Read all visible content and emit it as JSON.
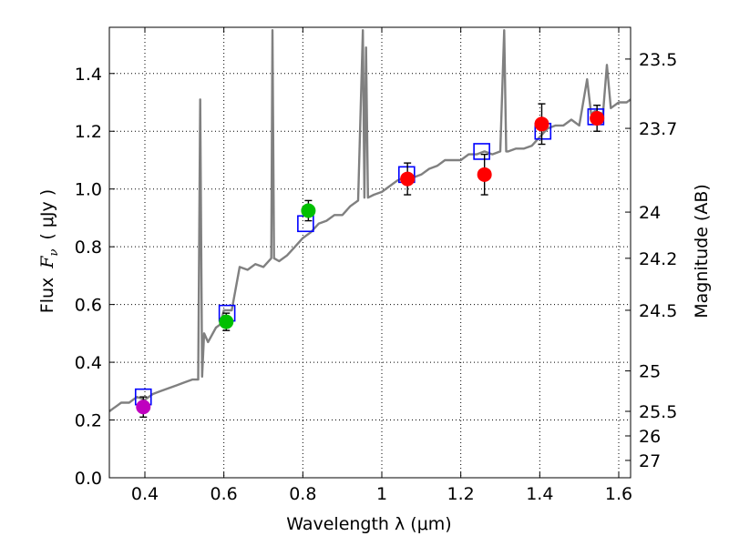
{
  "chart_data": {
    "type": "scatter",
    "xlabel": "Wavelength  λ (μm)",
    "ylabel_prefix": "Flux",
    "ylabel_symbol": "F",
    "ylabel_subscript": "ν",
    "ylabel_units": "( μJy )",
    "ylabel_right": "Magnitude (AB)",
    "xlim": [
      0.31,
      1.63
    ],
    "ylim": [
      0.0,
      1.56
    ],
    "x_ticks": [
      0.4,
      0.6,
      0.8,
      1.0,
      1.2,
      1.4,
      1.6
    ],
    "x_tick_labels": [
      "0.4",
      "0.6",
      "0.8",
      "1",
      "1.2",
      "1.4",
      "1.6"
    ],
    "y_ticks": [
      0.0,
      0.2,
      0.4,
      0.6,
      0.8,
      1.0,
      1.2,
      1.4
    ],
    "y_tick_labels": [
      "0.0",
      "0.2",
      "0.4",
      "0.6",
      "0.8",
      "1.0",
      "1.2",
      "1.4"
    ],
    "right_ticks": [
      {
        "flux": 1.45,
        "label": "23.5"
      },
      {
        "flux": 1.21,
        "label": "23.7"
      },
      {
        "flux": 0.92,
        "label": "24"
      },
      {
        "flux": 0.76,
        "label": "24.2"
      },
      {
        "flux": 0.58,
        "label": "24.5"
      },
      {
        "flux": 0.37,
        "label": "25"
      },
      {
        "flux": 0.23,
        "label": "25.5"
      },
      {
        "flux": 0.145,
        "label": "26"
      },
      {
        "flux": 0.06,
        "label": "27"
      }
    ],
    "grid": true,
    "colors": {
      "spectrum": "#808080",
      "model_box": "#0000ff",
      "error_bar": "#000000",
      "band_blue": "#bf00bf",
      "band_green": "#00bf00",
      "band_red": "#ff0000"
    },
    "series": [
      {
        "name": "model spectrum",
        "kind": "line",
        "points": [
          [
            0.31,
            0.23
          ],
          [
            0.32,
            0.24
          ],
          [
            0.33,
            0.25
          ],
          [
            0.34,
            0.26
          ],
          [
            0.36,
            0.26
          ],
          [
            0.38,
            0.28
          ],
          [
            0.4,
            0.27
          ],
          [
            0.42,
            0.29
          ],
          [
            0.44,
            0.3
          ],
          [
            0.46,
            0.31
          ],
          [
            0.48,
            0.32
          ],
          [
            0.5,
            0.33
          ],
          [
            0.52,
            0.34
          ],
          [
            0.535,
            0.34
          ],
          [
            0.54,
            1.31
          ],
          [
            0.545,
            0.35
          ],
          [
            0.55,
            0.5
          ],
          [
            0.56,
            0.47
          ],
          [
            0.58,
            0.52
          ],
          [
            0.59,
            0.53
          ],
          [
            0.6,
            0.58
          ],
          [
            0.62,
            0.58
          ],
          [
            0.64,
            0.73
          ],
          [
            0.66,
            0.72
          ],
          [
            0.68,
            0.74
          ],
          [
            0.7,
            0.73
          ],
          [
            0.72,
            0.76
          ],
          [
            0.723,
            1.55
          ],
          [
            0.727,
            0.76
          ],
          [
            0.74,
            0.75
          ],
          [
            0.76,
            0.77
          ],
          [
            0.78,
            0.8
          ],
          [
            0.8,
            0.83
          ],
          [
            0.82,
            0.85
          ],
          [
            0.84,
            0.88
          ],
          [
            0.86,
            0.89
          ],
          [
            0.88,
            0.91
          ],
          [
            0.9,
            0.91
          ],
          [
            0.92,
            0.94
          ],
          [
            0.94,
            0.96
          ],
          [
            0.952,
            1.55
          ],
          [
            0.956,
            0.97
          ],
          [
            0.96,
            1.49
          ],
          [
            0.965,
            0.97
          ],
          [
            0.98,
            0.98
          ],
          [
            1.0,
            0.99
          ],
          [
            1.02,
            1.01
          ],
          [
            1.04,
            1.03
          ],
          [
            1.06,
            1.04
          ],
          [
            1.08,
            1.04
          ],
          [
            1.1,
            1.05
          ],
          [
            1.12,
            1.07
          ],
          [
            1.14,
            1.08
          ],
          [
            1.16,
            1.1
          ],
          [
            1.18,
            1.1
          ],
          [
            1.2,
            1.1
          ],
          [
            1.22,
            1.12
          ],
          [
            1.24,
            1.12
          ],
          [
            1.26,
            1.13
          ],
          [
            1.28,
            1.12
          ],
          [
            1.3,
            1.13
          ],
          [
            1.31,
            1.55
          ],
          [
            1.315,
            1.13
          ],
          [
            1.32,
            1.13
          ],
          [
            1.34,
            1.14
          ],
          [
            1.36,
            1.14
          ],
          [
            1.38,
            1.15
          ],
          [
            1.4,
            1.18
          ],
          [
            1.42,
            1.21
          ],
          [
            1.44,
            1.22
          ],
          [
            1.46,
            1.22
          ],
          [
            1.48,
            1.24
          ],
          [
            1.5,
            1.22
          ],
          [
            1.52,
            1.38
          ],
          [
            1.53,
            1.26
          ],
          [
            1.54,
            1.27
          ],
          [
            1.56,
            1.26
          ],
          [
            1.57,
            1.43
          ],
          [
            1.58,
            1.28
          ],
          [
            1.6,
            1.3
          ],
          [
            1.62,
            1.3
          ],
          [
            1.63,
            1.31
          ]
        ]
      },
      {
        "name": "model photometry",
        "kind": "box",
        "points": [
          [
            0.396,
            0.28
          ],
          [
            0.608,
            0.57
          ],
          [
            0.807,
            0.88
          ],
          [
            1.063,
            1.05
          ],
          [
            1.253,
            1.13
          ],
          [
            1.408,
            1.2
          ],
          [
            1.542,
            1.25
          ]
        ]
      },
      {
        "name": "observed photometry",
        "kind": "point",
        "points": [
          {
            "x": 0.396,
            "y": 0.245,
            "err": 0.035,
            "color": "band_blue"
          },
          {
            "x": 0.606,
            "y": 0.54,
            "err": 0.03,
            "color": "band_green"
          },
          {
            "x": 0.814,
            "y": 0.925,
            "err": 0.035,
            "color": "band_green"
          },
          {
            "x": 1.065,
            "y": 1.035,
            "err": 0.055,
            "color": "band_red"
          },
          {
            "x": 1.26,
            "y": 1.05,
            "err": 0.07,
            "color": "band_red"
          },
          {
            "x": 1.405,
            "y": 1.225,
            "err": 0.07,
            "color": "band_red"
          },
          {
            "x": 1.545,
            "y": 1.245,
            "err": 0.045,
            "color": "band_red"
          }
        ]
      }
    ]
  }
}
